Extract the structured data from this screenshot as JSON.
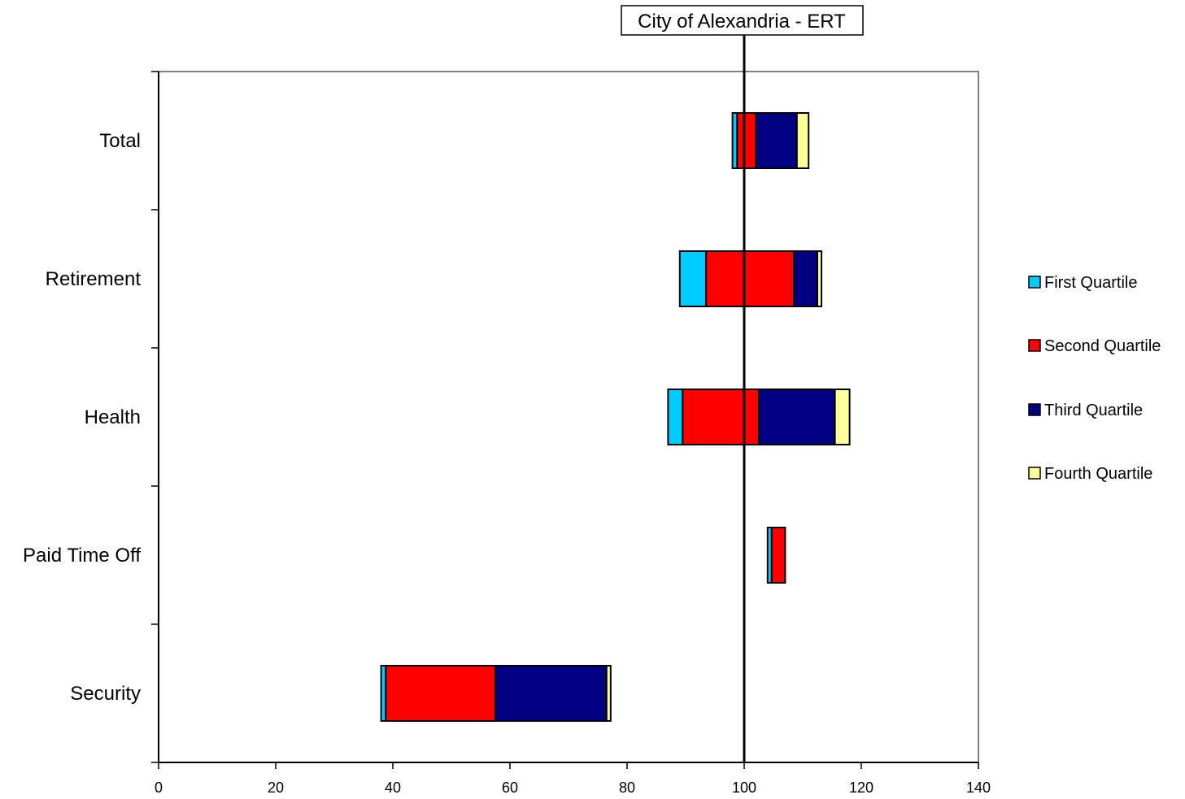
{
  "chart_data": {
    "type": "bar",
    "orientation": "horizontal",
    "stacked": true,
    "categories": [
      "Total",
      "Retirement",
      "Health",
      "Paid Time Off",
      "Security"
    ],
    "series": [
      {
        "name": "First Quartile",
        "color": "#00ccff"
      },
      {
        "name": "Second Quartile",
        "color": "#ff0000"
      },
      {
        "name": "Third Quartile",
        "color": "#000080"
      },
      {
        "name": "Fourth Quartile",
        "color": "#ffff99"
      }
    ],
    "bars": [
      {
        "category": "Total",
        "start": 98,
        "segments": [
          0.8,
          3.2,
          7,
          2
        ]
      },
      {
        "category": "Retirement",
        "start": 89,
        "segments": [
          4.5,
          15,
          4,
          0.7
        ]
      },
      {
        "category": "Health",
        "start": 87,
        "segments": [
          2.5,
          13,
          13,
          2.5
        ]
      },
      {
        "category": "Paid Time Off",
        "start": 104,
        "segments": [
          0.7,
          2.3,
          0,
          0
        ]
      },
      {
        "category": "Security",
        "start": 38,
        "segments": [
          0.8,
          18.7,
          19,
          0.7
        ]
      }
    ],
    "xlim": [
      0,
      140
    ],
    "xticks": [
      0,
      20,
      40,
      60,
      80,
      100,
      120,
      140
    ],
    "reference_line": {
      "value": 100,
      "label": "City of Alexandria - ERT"
    },
    "legend_position": "right",
    "grid": false,
    "xlabel": "",
    "ylabel": ""
  }
}
